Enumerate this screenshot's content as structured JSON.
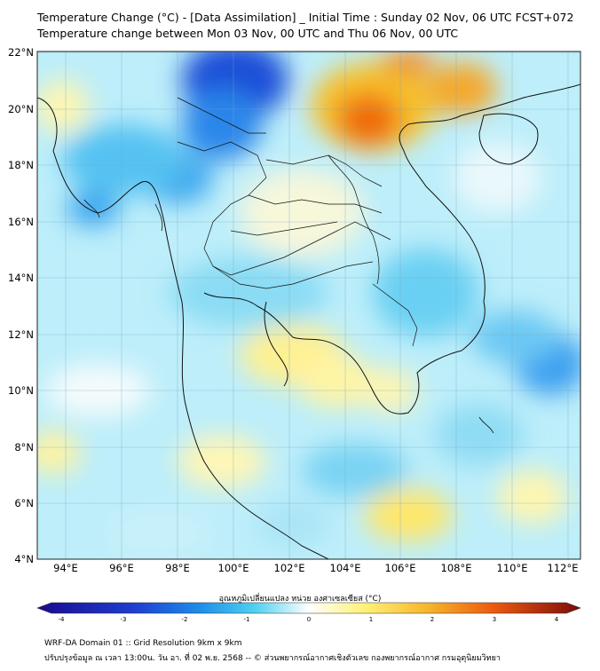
{
  "header": {
    "title_line1": "Temperature Change (°C) - [Data Assimilation] _ Initial Time : Sunday 02 Nov, 06 UTC FCST+072",
    "title_line2": "Temperature change between Mon 03 Nov, 00 UTC and Thu 06 Nov, 00 UTC"
  },
  "map": {
    "lat_labels": [
      "22°N",
      "20°N",
      "18°N",
      "16°N",
      "14°N",
      "12°N",
      "10°N",
      "8°N",
      "6°N",
      "4°N"
    ],
    "lon_labels": [
      "94°E",
      "96°E",
      "98°E",
      "100°E",
      "102°E",
      "104°E",
      "106°E",
      "108°E",
      "110°E",
      "112°E"
    ],
    "lat_range": [
      4,
      22
    ],
    "lon_range": [
      93,
      112.5
    ]
  },
  "colorbar": {
    "label": "อุณหภูมิเปลี่ยนแปลง หน่วย องศาเซลเซียส (°C)",
    "ticks": [
      "-4",
      "-3",
      "-2",
      "-1",
      "0",
      "1",
      "2",
      "3",
      "4"
    ],
    "min": -4,
    "max": 4
  },
  "footer": {
    "line1": "WRF-DA Domain 01 :: Grid Resolution 9km x 9km",
    "line2": "ปรับปรุงข้อมูล ณ เวลา 13:00น. วัน อา. ที่ 02 พ.ย. 2568 -- © ส่วนพยากรณ์อากาศเชิงตัวเลข กองพยากรณ์อากาศ กรมอุตุนิยมวิทยา"
  },
  "colors": {
    "cold_extreme": "#1a0a8c",
    "cold": "#1e6fe6",
    "cool": "#4fd0f0",
    "neutral": "#ffffff",
    "warm": "#fff080",
    "hot": "#f07a10",
    "hot_extreme": "#7a0a0a"
  }
}
